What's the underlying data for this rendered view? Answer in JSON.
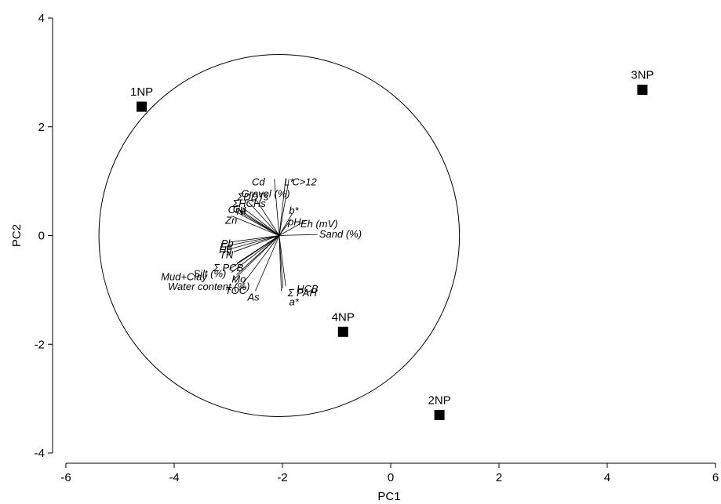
{
  "chart_data": {
    "type": "scatter",
    "title": "",
    "xlabel": "PC1",
    "ylabel": "PC2",
    "xlim": [
      -6,
      6
    ],
    "ylim": [
      -4,
      4
    ],
    "x_ticks": [
      -6,
      -4,
      -2,
      0,
      2,
      4,
      6
    ],
    "y_ticks": [
      -4,
      -2,
      0,
      2,
      4
    ],
    "grid": false,
    "legend": "none",
    "points": [
      {
        "label": "1NP",
        "x": -4.6,
        "y": 2.37
      },
      {
        "label": "3NP",
        "x": 4.65,
        "y": 2.68
      },
      {
        "label": "4NP",
        "x": -0.88,
        "y": -1.77
      },
      {
        "label": "2NP",
        "x": 0.9,
        "y": -3.3
      }
    ],
    "correlation_circle": {
      "center": [
        -2.06,
        0
      ],
      "radius": 3.33
    },
    "loadings": [
      {
        "label": "Cd",
        "x": -2.15,
        "y": 1.04
      },
      {
        "label": "L*",
        "x": -1.94,
        "y": 1.04
      },
      {
        "label": "C>12",
        "x": -1.88,
        "y": 1.04
      },
      {
        "label": "b*",
        "x": -1.82,
        "y": 0.4
      },
      {
        "label": "pH",
        "x": -1.84,
        "y": 0.3
      },
      {
        "label": "Eh (mV)",
        "x": -1.58,
        "y": 0.27
      },
      {
        "label": "Sand (%)",
        "x": -1.35,
        "y": 0.02
      },
      {
        "label": "Gravel (%)",
        "x": -2.5,
        "y": 0.68
      },
      {
        "label": "ΣDDTs",
        "x": -2.63,
        "y": 0.62
      },
      {
        "label": "ΣHCHs",
        "x": -2.72,
        "y": 0.5
      },
      {
        "label": "Cu",
        "x": -2.8,
        "y": 0.48
      },
      {
        "label": "Ni",
        "x": -2.79,
        "y": 0.44
      },
      {
        "label": "Cr",
        "x": -2.86,
        "y": 0.44
      },
      {
        "label": "Zn",
        "x": -2.94,
        "y": 0.36
      },
      {
        "label": "Pb",
        "x": -2.96,
        "y": -0.12
      },
      {
        "label": "Fe",
        "x": -2.98,
        "y": -0.18
      },
      {
        "label": "Hg",
        "x": -2.94,
        "y": -0.24
      },
      {
        "label": "TN",
        "x": -2.9,
        "y": -0.3
      },
      {
        "label": "Σ PCB",
        "x": -2.84,
        "y": -0.51
      },
      {
        "label": "Silt (%)",
        "x": -2.98,
        "y": -0.62
      },
      {
        "label": "Mud+Clay",
        "x": -2.94,
        "y": -0.68
      },
      {
        "label": "Mo",
        "x": -2.85,
        "y": -0.72
      },
      {
        "label": "Water content (%)",
        "x": -2.92,
        "y": -0.83
      },
      {
        "label": "TOC",
        "x": -2.74,
        "y": -0.9
      },
      {
        "label": "As",
        "x": -2.5,
        "y": -1.02
      },
      {
        "label": "HCB",
        "x": -1.94,
        "y": -0.93
      },
      {
        "label": "Σ PAH",
        "x": -1.99,
        "y": -0.97
      },
      {
        "label": "a*",
        "x": -2.02,
        "y": -1.02
      }
    ]
  }
}
